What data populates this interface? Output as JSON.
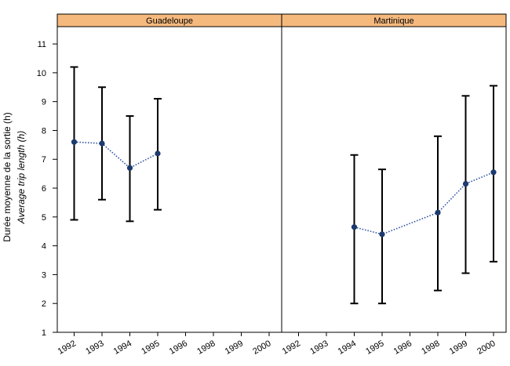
{
  "chart_data": {
    "type": "scatter",
    "ylabel_fr": "Durée moyenne de la sortie (h)",
    "ylabel_en": "Average trip length (h)",
    "ylim": [
      1,
      11.6
    ],
    "yticks": [
      1,
      2,
      3,
      4,
      5,
      6,
      7,
      8,
      9,
      10,
      11
    ],
    "categories": [
      "1992",
      "1993",
      "1994",
      "1995",
      "1996",
      "1998",
      "1999",
      "2000"
    ],
    "colors": {
      "strip": "#F5B97E",
      "point": "#1C3A6E",
      "line": "#2B4FA0",
      "error": "#000000"
    },
    "panels": [
      {
        "name": "Guadeloupe",
        "points": [
          {
            "x": "1992",
            "y": 7.6,
            "low": 4.9,
            "high": 10.2
          },
          {
            "x": "1993",
            "y": 7.55,
            "low": 5.6,
            "high": 9.5
          },
          {
            "x": "1994",
            "y": 6.7,
            "low": 4.85,
            "high": 8.5
          },
          {
            "x": "1995",
            "y": 7.2,
            "low": 5.25,
            "high": 9.1
          }
        ]
      },
      {
        "name": "Martinique",
        "points": [
          {
            "x": "1994",
            "y": 4.65,
            "low": 2.0,
            "high": 7.15
          },
          {
            "x": "1995",
            "y": 4.4,
            "low": 2.0,
            "high": 6.65
          },
          {
            "x": "1998",
            "y": 5.15,
            "low": 2.45,
            "high": 7.8
          },
          {
            "x": "1999",
            "y": 6.15,
            "low": 3.05,
            "high": 9.2
          },
          {
            "x": "2000",
            "y": 6.55,
            "low": 3.45,
            "high": 9.55
          }
        ]
      }
    ]
  }
}
